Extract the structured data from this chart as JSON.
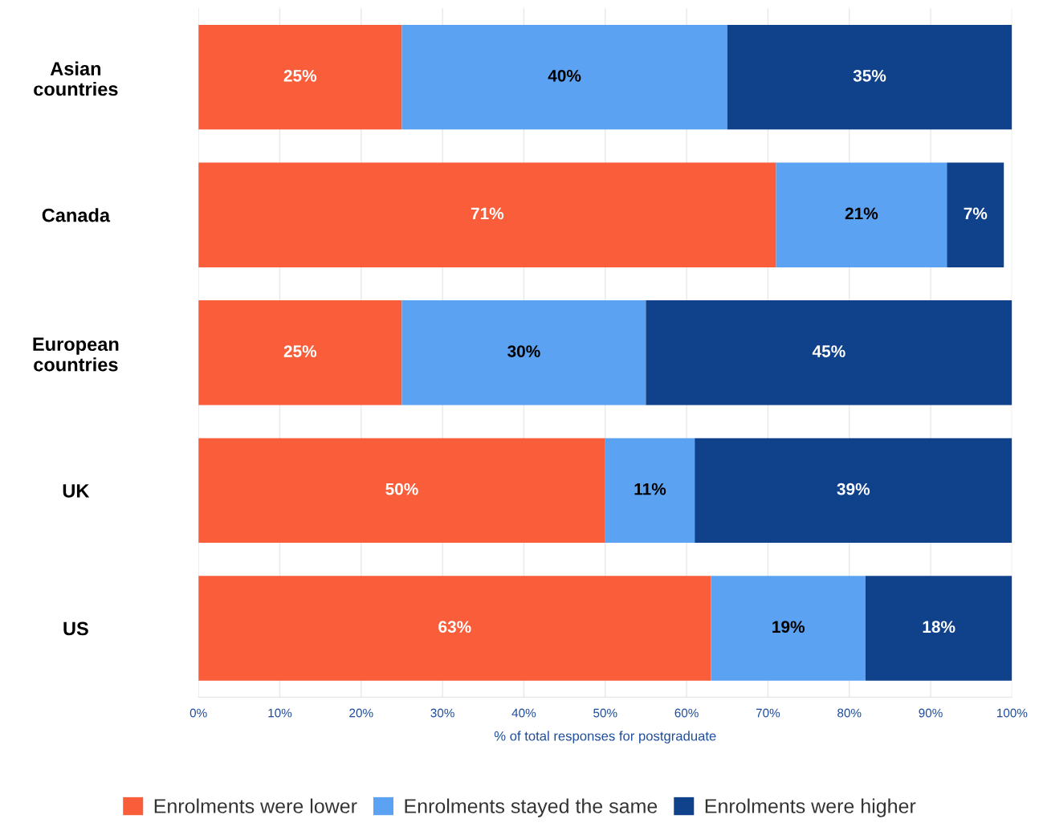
{
  "chart_data": {
    "type": "bar",
    "orientation": "horizontal",
    "stacked": true,
    "categories": [
      "Asian\ncountries",
      "Canada",
      "European\ncountries",
      "UK",
      "US"
    ],
    "series": [
      {
        "name": "Enrolments were lower",
        "color": "#f95d3a",
        "values": [
          25,
          71,
          25,
          50,
          63
        ],
        "value_labels": [
          "25%",
          "71%",
          "25%",
          "50%",
          "63%"
        ]
      },
      {
        "name": "Enrolments stayed the same",
        "color": "#5ba3f2",
        "values": [
          40,
          21,
          30,
          11,
          19
        ],
        "value_labels": [
          "40%",
          "21%",
          "30%",
          "11%",
          "19%"
        ]
      },
      {
        "name": "Enrolments were higher",
        "color": "#10418b",
        "values": [
          35,
          7,
          45,
          39,
          18
        ],
        "value_labels": [
          "35%",
          "7%",
          "45%",
          "39%",
          "18%"
        ]
      }
    ],
    "xlim": [
      0,
      100
    ],
    "xticks": [
      {
        "value": 0,
        "label": "0%"
      },
      {
        "value": 10,
        "label": "10%"
      },
      {
        "value": 20,
        "label": "20%"
      },
      {
        "value": 30,
        "label": "30%"
      },
      {
        "value": 40,
        "label": "40%"
      },
      {
        "value": 50,
        "label": "50%"
      },
      {
        "value": 60,
        "label": "60%"
      },
      {
        "value": 70,
        "label": "70%"
      },
      {
        "value": 80,
        "label": "80%"
      },
      {
        "value": 90,
        "label": "90%"
      },
      {
        "value": 100,
        "label": "100%"
      }
    ],
    "xlabel": "% of total responses for postgraduate",
    "grid": "x",
    "legend": "bottom"
  }
}
